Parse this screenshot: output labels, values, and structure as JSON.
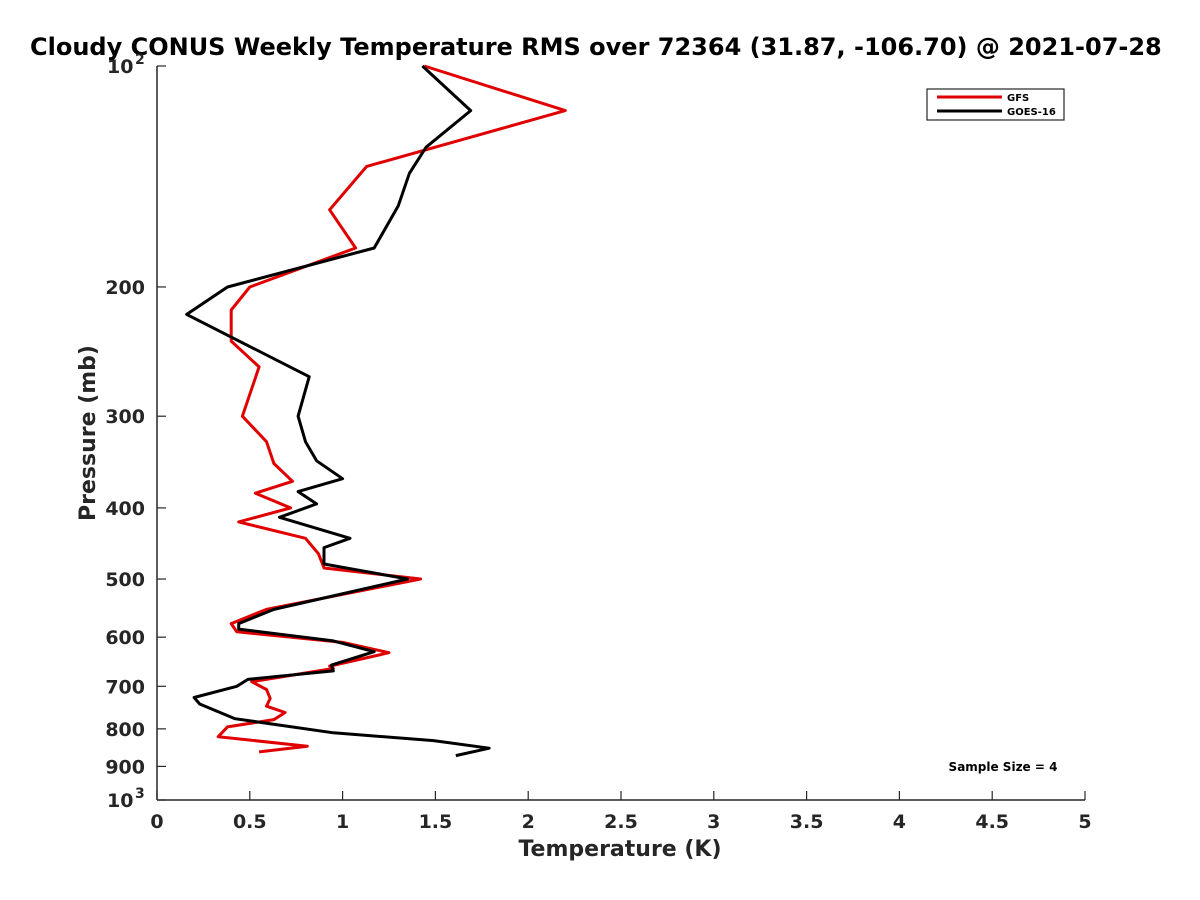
{
  "chart_data": {
    "type": "line",
    "title": "Cloudy CONUS Weekly Temperature RMS over 72364 (31.87, -106.70) @ 2021-07-28",
    "xlabel": "Temperature (K)",
    "ylabel": "Pressure (mb)",
    "xlim": [
      0,
      5
    ],
    "ylim": [
      100,
      1000
    ],
    "y_scale": "log",
    "y_reversed": true,
    "grid": false,
    "legend_position": "top-right",
    "x_ticks": [
      {
        "value": 0,
        "label": "0"
      },
      {
        "value": 0.5,
        "label": "0.5"
      },
      {
        "value": 1,
        "label": "1"
      },
      {
        "value": 1.5,
        "label": "1.5"
      },
      {
        "value": 2,
        "label": "2"
      },
      {
        "value": 2.5,
        "label": "2.5"
      },
      {
        "value": 3,
        "label": "3"
      },
      {
        "value": 3.5,
        "label": "3.5"
      },
      {
        "value": 4,
        "label": "4"
      },
      {
        "value": 4.5,
        "label": "4.5"
      },
      {
        "value": 5,
        "label": "5"
      }
    ],
    "y_ticks": [
      {
        "value": 100,
        "base": "10",
        "exp": "2"
      },
      {
        "value": 200,
        "base": "200",
        "exp": ""
      },
      {
        "value": 300,
        "base": "300",
        "exp": ""
      },
      {
        "value": 400,
        "base": "400",
        "exp": ""
      },
      {
        "value": 500,
        "base": "500",
        "exp": ""
      },
      {
        "value": 600,
        "base": "600",
        "exp": ""
      },
      {
        "value": 700,
        "base": "700",
        "exp": ""
      },
      {
        "value": 800,
        "base": "800",
        "exp": ""
      },
      {
        "value": 900,
        "base": "900",
        "exp": ""
      },
      {
        "value": 1000,
        "base": "10",
        "exp": "3"
      }
    ],
    "series": [
      {
        "name": "GFS",
        "color": "#e00000",
        "points": [
          [
            1.44,
            100
          ],
          [
            2.2,
            115
          ],
          [
            1.13,
            137
          ],
          [
            0.93,
            157
          ],
          [
            1.07,
            177
          ],
          [
            0.5,
            200
          ],
          [
            0.4,
            215
          ],
          [
            0.4,
            237
          ],
          [
            0.55,
            257
          ],
          [
            0.46,
            300
          ],
          [
            0.59,
            325
          ],
          [
            0.63,
            348
          ],
          [
            0.73,
            368
          ],
          [
            0.53,
            382
          ],
          [
            0.72,
            400
          ],
          [
            0.44,
            418
          ],
          [
            0.8,
            440
          ],
          [
            0.87,
            462
          ],
          [
            0.9,
            483
          ],
          [
            1.42,
            500
          ],
          [
            0.59,
            550
          ],
          [
            0.4,
            575
          ],
          [
            0.43,
            590
          ],
          [
            1.0,
            610
          ],
          [
            1.25,
            630
          ],
          [
            0.93,
            657
          ],
          [
            0.95,
            662
          ],
          [
            0.51,
            690
          ],
          [
            0.59,
            707
          ],
          [
            0.61,
            727
          ],
          [
            0.59,
            745
          ],
          [
            0.69,
            760
          ],
          [
            0.63,
            777
          ],
          [
            0.38,
            795
          ],
          [
            0.33,
            820
          ],
          [
            0.81,
            845
          ],
          [
            0.55,
            860
          ]
        ]
      },
      {
        "name": "GOES-16",
        "color": "#000000",
        "points": [
          [
            1.43,
            100
          ],
          [
            1.69,
            115
          ],
          [
            1.45,
            129
          ],
          [
            1.36,
            140
          ],
          [
            1.3,
            155
          ],
          [
            1.17,
            177
          ],
          [
            0.38,
            200
          ],
          [
            0.16,
            218
          ],
          [
            0.82,
            265
          ],
          [
            0.76,
            300
          ],
          [
            0.8,
            325
          ],
          [
            0.86,
            345
          ],
          [
            1.0,
            365
          ],
          [
            0.76,
            380
          ],
          [
            0.86,
            395
          ],
          [
            0.66,
            412
          ],
          [
            1.04,
            440
          ],
          [
            0.9,
            453
          ],
          [
            0.9,
            477
          ],
          [
            1.35,
            500
          ],
          [
            0.63,
            550
          ],
          [
            0.44,
            575
          ],
          [
            0.44,
            585
          ],
          [
            0.95,
            607
          ],
          [
            1.17,
            628
          ],
          [
            0.94,
            655
          ],
          [
            0.95,
            667
          ],
          [
            0.49,
            685
          ],
          [
            0.43,
            700
          ],
          [
            0.2,
            725
          ],
          [
            0.23,
            740
          ],
          [
            0.42,
            775
          ],
          [
            0.95,
            810
          ],
          [
            1.49,
            830
          ],
          [
            1.79,
            850
          ],
          [
            1.61,
            870
          ]
        ]
      }
    ],
    "annotations": [
      "Sample Size = 4"
    ]
  }
}
